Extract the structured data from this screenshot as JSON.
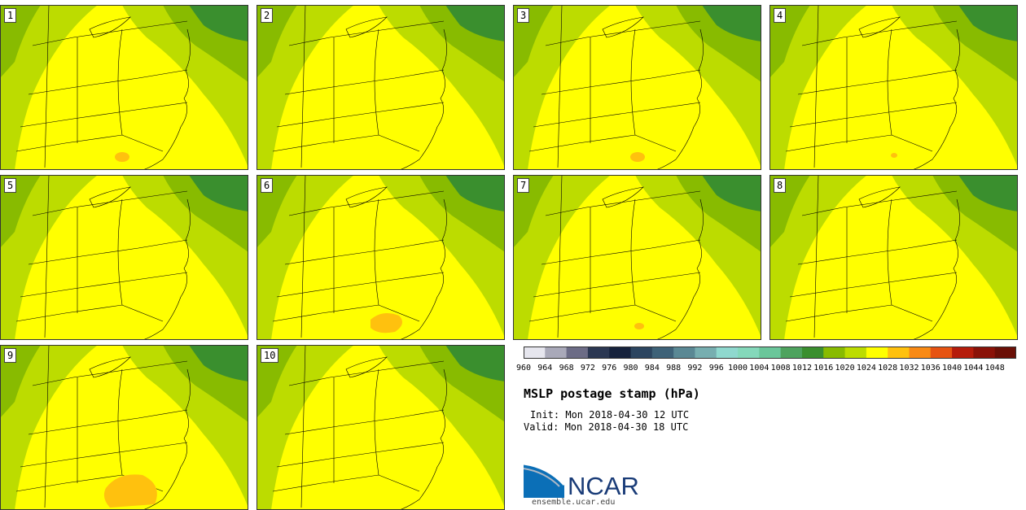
{
  "panels": [
    "1",
    "2",
    "3",
    "4",
    "5",
    "6",
    "7",
    "8",
    "9",
    "10"
  ],
  "legend": {
    "labels": [
      "960",
      "964",
      "968",
      "972",
      "976",
      "980",
      "984",
      "988",
      "992",
      "996",
      "1000",
      "1004",
      "1008",
      "1012",
      "1016",
      "1020",
      "1024",
      "1028",
      "1032",
      "1036",
      "1040",
      "1044",
      "1048"
    ],
    "colors": [
      "#e6e6ee",
      "#a9a9b9",
      "#6c6c86",
      "#2b3752",
      "#16223c",
      "#2c4560",
      "#3e6278",
      "#5a8894",
      "#77aeb0",
      "#8fd8ce",
      "#84d8ba",
      "#6ac69a",
      "#4ea35e",
      "#3a8f2e",
      "#88bb00",
      "#bcdc00",
      "#ffff00",
      "#ffc10e",
      "#f98a14",
      "#e65312",
      "#b51c0b",
      "#8a1208",
      "#6a0f06"
    ],
    "units": "hPa"
  },
  "title": "MSLP postage stamp (hPa)",
  "init": "Init: Mon 2018-04-30 12 UTC",
  "valid": "Valid: Mon 2018-04-30 18 UTC",
  "logo": {
    "text": "NCAR",
    "site": "ensemble.ucar.edu"
  }
}
